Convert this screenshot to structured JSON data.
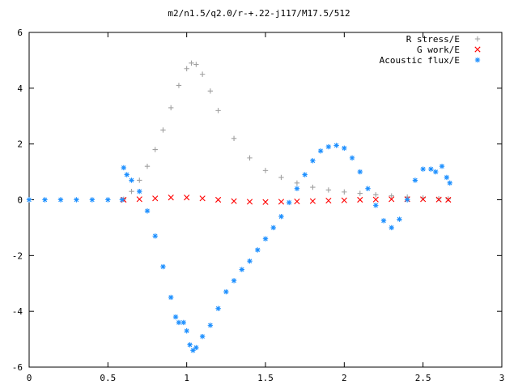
{
  "chart_data": {
    "type": "scatter",
    "title": "m2/n1.5/q2.0/r-+.22-j117/M17.5/512",
    "xlabel": "",
    "ylabel": "",
    "xlim": [
      0,
      3
    ],
    "ylim": [
      -6,
      6
    ],
    "x_ticks": [
      "0",
      "0.5",
      "1",
      "1.5",
      "2",
      "2.5",
      "3"
    ],
    "y_ticks": [
      "-6",
      "-4",
      "-2",
      "0",
      "2",
      "4",
      "6"
    ],
    "grid": false,
    "legend_position": "top-right",
    "series": [
      {
        "name": "R stress/E",
        "color": "#a0a0a0",
        "marker": "plus",
        "points": [
          [
            0.6,
            0.02
          ],
          [
            0.65,
            0.3
          ],
          [
            0.7,
            0.7
          ],
          [
            0.75,
            1.2
          ],
          [
            0.8,
            1.8
          ],
          [
            0.85,
            2.5
          ],
          [
            0.9,
            3.3
          ],
          [
            0.95,
            4.1
          ],
          [
            1.0,
            4.7
          ],
          [
            1.03,
            4.9
          ],
          [
            1.06,
            4.85
          ],
          [
            1.1,
            4.5
          ],
          [
            1.15,
            3.9
          ],
          [
            1.2,
            3.2
          ],
          [
            1.3,
            2.2
          ],
          [
            1.4,
            1.5
          ],
          [
            1.5,
            1.05
          ],
          [
            1.6,
            0.8
          ],
          [
            1.7,
            0.6
          ],
          [
            1.8,
            0.45
          ],
          [
            1.9,
            0.35
          ],
          [
            2.0,
            0.28
          ],
          [
            2.1,
            0.23
          ],
          [
            2.2,
            0.18
          ],
          [
            2.3,
            0.14
          ],
          [
            2.4,
            0.1
          ],
          [
            2.5,
            0.07
          ],
          [
            2.6,
            0.04
          ],
          [
            2.66,
            0.03
          ]
        ]
      },
      {
        "name": "G work/E",
        "color": "#ff0000",
        "marker": "cross",
        "points": [
          [
            0.6,
            0.0
          ],
          [
            0.7,
            0.02
          ],
          [
            0.8,
            0.05
          ],
          [
            0.9,
            0.08
          ],
          [
            1.0,
            0.08
          ],
          [
            1.1,
            0.05
          ],
          [
            1.2,
            0.0
          ],
          [
            1.3,
            -0.05
          ],
          [
            1.4,
            -0.07
          ],
          [
            1.5,
            -0.08
          ],
          [
            1.6,
            -0.07
          ],
          [
            1.7,
            -0.06
          ],
          [
            1.8,
            -0.05
          ],
          [
            1.9,
            -0.03
          ],
          [
            2.0,
            -0.02
          ],
          [
            2.1,
            0.0
          ],
          [
            2.2,
            0.01
          ],
          [
            2.3,
            0.02
          ],
          [
            2.4,
            0.02
          ],
          [
            2.5,
            0.02
          ],
          [
            2.6,
            0.01
          ],
          [
            2.66,
            0.0
          ]
        ]
      },
      {
        "name": "Acoustic flux/E",
        "color": "#1e90ff",
        "marker": "star",
        "points": [
          [
            0.0,
            0.0
          ],
          [
            0.1,
            0.0
          ],
          [
            0.2,
            0.0
          ],
          [
            0.3,
            0.0
          ],
          [
            0.4,
            0.0
          ],
          [
            0.5,
            0.0
          ],
          [
            0.59,
            0.0
          ],
          [
            0.6,
            1.15
          ],
          [
            0.62,
            0.9
          ],
          [
            0.65,
            0.7
          ],
          [
            0.7,
            0.3
          ],
          [
            0.75,
            -0.4
          ],
          [
            0.8,
            -1.3
          ],
          [
            0.85,
            -2.4
          ],
          [
            0.9,
            -3.5
          ],
          [
            0.93,
            -4.2
          ],
          [
            0.95,
            -4.4
          ],
          [
            0.98,
            -4.4
          ],
          [
            1.0,
            -4.7
          ],
          [
            1.02,
            -5.2
          ],
          [
            1.04,
            -5.4
          ],
          [
            1.06,
            -5.3
          ],
          [
            1.1,
            -4.9
          ],
          [
            1.15,
            -4.5
          ],
          [
            1.2,
            -3.9
          ],
          [
            1.25,
            -3.3
          ],
          [
            1.3,
            -2.9
          ],
          [
            1.35,
            -2.5
          ],
          [
            1.4,
            -2.2
          ],
          [
            1.45,
            -1.8
          ],
          [
            1.5,
            -1.4
          ],
          [
            1.55,
            -1.0
          ],
          [
            1.6,
            -0.6
          ],
          [
            1.65,
            -0.1
          ],
          [
            1.7,
            0.4
          ],
          [
            1.75,
            0.9
          ],
          [
            1.8,
            1.4
          ],
          [
            1.85,
            1.75
          ],
          [
            1.9,
            1.9
          ],
          [
            1.95,
            1.95
          ],
          [
            2.0,
            1.85
          ],
          [
            2.05,
            1.5
          ],
          [
            2.1,
            1.0
          ],
          [
            2.15,
            0.4
          ],
          [
            2.2,
            -0.2
          ],
          [
            2.25,
            -0.75
          ],
          [
            2.3,
            -1.0
          ],
          [
            2.35,
            -0.7
          ],
          [
            2.4,
            0.0
          ],
          [
            2.45,
            0.7
          ],
          [
            2.5,
            1.1
          ],
          [
            2.55,
            1.1
          ],
          [
            2.58,
            1.0
          ],
          [
            2.62,
            1.2
          ],
          [
            2.65,
            0.8
          ],
          [
            2.67,
            0.6
          ]
        ]
      }
    ]
  }
}
